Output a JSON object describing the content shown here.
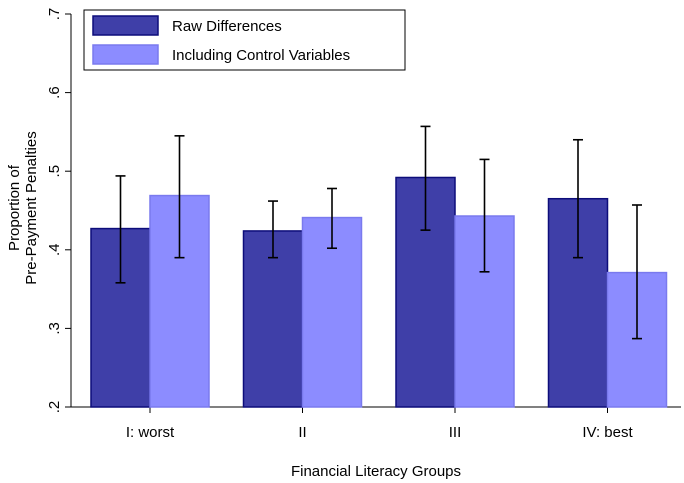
{
  "chart_data": {
    "type": "bar",
    "title": "",
    "xlabel": "Financial Literacy Groups",
    "ylabel_lines": [
      "Proportion of",
      "Pre-Payment Penalties"
    ],
    "categories": [
      "I: worst",
      "II",
      "III",
      "IV: best"
    ],
    "ylim": [
      0.2,
      0.7
    ],
    "yticks": [
      ".2",
      ".3",
      ".4",
      ".5",
      ".6",
      ".7"
    ],
    "ytick_values": [
      0.2,
      0.3,
      0.4,
      0.5,
      0.6,
      0.7
    ],
    "bar_base": 0.2,
    "grid": false,
    "legend_position": "top-left",
    "series": [
      {
        "name": "Raw Differences",
        "color": "#3f3fa8",
        "edge_color": "#0d0d7a",
        "values": [
          0.427,
          0.424,
          0.492,
          0.465
        ],
        "ci_low": [
          0.358,
          0.39,
          0.425,
          0.39
        ],
        "ci_high": [
          0.494,
          0.462,
          0.557,
          0.54
        ]
      },
      {
        "name": "Including Control Variables",
        "color": "#8c8cff",
        "edge_color": "#7a7aee",
        "values": [
          0.469,
          0.441,
          0.443,
          0.371
        ],
        "ci_low": [
          0.39,
          0.402,
          0.372,
          0.287
        ],
        "ci_high": [
          0.545,
          0.478,
          0.515,
          0.457
        ]
      }
    ]
  }
}
